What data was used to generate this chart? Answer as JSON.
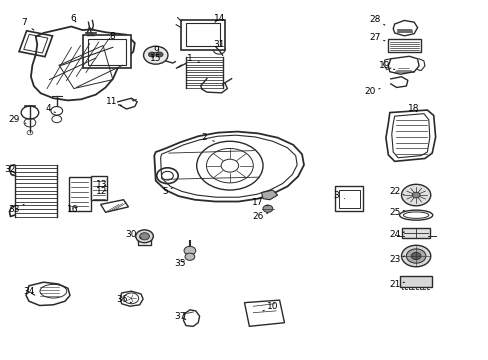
{
  "bg_color": "#ffffff",
  "line_color": "#2a2a2a",
  "parts_labels": [
    [
      7,
      0.048,
      0.938,
      0.068,
      0.918
    ],
    [
      6,
      0.148,
      0.95,
      0.158,
      0.935
    ],
    [
      8,
      0.228,
      0.9,
      0.218,
      0.888
    ],
    [
      9,
      0.318,
      0.862,
      0.31,
      0.848
    ],
    [
      15,
      0.318,
      0.838,
      0.31,
      0.845
    ],
    [
      14,
      0.448,
      0.95,
      0.435,
      0.935
    ],
    [
      31,
      0.448,
      0.878,
      0.458,
      0.868
    ],
    [
      1,
      0.388,
      0.838,
      0.408,
      0.828
    ],
    [
      28,
      0.768,
      0.948,
      0.788,
      0.932
    ],
    [
      27,
      0.768,
      0.898,
      0.788,
      0.888
    ],
    [
      19,
      0.788,
      0.818,
      0.808,
      0.808
    ],
    [
      20,
      0.758,
      0.748,
      0.778,
      0.755
    ],
    [
      18,
      0.848,
      0.698,
      0.858,
      0.685
    ],
    [
      11,
      0.228,
      0.718,
      0.248,
      0.708
    ],
    [
      4,
      0.098,
      0.698,
      0.112,
      0.688
    ],
    [
      29,
      0.028,
      0.668,
      0.052,
      0.658
    ],
    [
      2,
      0.418,
      0.618,
      0.438,
      0.608
    ],
    [
      32,
      0.018,
      0.528,
      0.035,
      0.515
    ],
    [
      33,
      0.028,
      0.418,
      0.048,
      0.432
    ],
    [
      16,
      0.148,
      0.418,
      0.162,
      0.428
    ],
    [
      13,
      0.208,
      0.488,
      0.222,
      0.478
    ],
    [
      12,
      0.208,
      0.468,
      0.222,
      0.472
    ],
    [
      5,
      0.338,
      0.468,
      0.352,
      0.478
    ],
    [
      17,
      0.528,
      0.438,
      0.548,
      0.428
    ],
    [
      26,
      0.528,
      0.398,
      0.548,
      0.408
    ],
    [
      3,
      0.688,
      0.458,
      0.705,
      0.448
    ],
    [
      22,
      0.808,
      0.468,
      0.828,
      0.458
    ],
    [
      25,
      0.808,
      0.408,
      0.828,
      0.415
    ],
    [
      24,
      0.808,
      0.348,
      0.828,
      0.355
    ],
    [
      23,
      0.808,
      0.278,
      0.828,
      0.288
    ],
    [
      21,
      0.808,
      0.208,
      0.828,
      0.215
    ],
    [
      30,
      0.268,
      0.348,
      0.288,
      0.338
    ],
    [
      35,
      0.368,
      0.268,
      0.382,
      0.278
    ],
    [
      34,
      0.058,
      0.188,
      0.075,
      0.175
    ],
    [
      36,
      0.248,
      0.168,
      0.268,
      0.158
    ],
    [
      37,
      0.368,
      0.118,
      0.385,
      0.108
    ],
    [
      10,
      0.558,
      0.148,
      0.538,
      0.135
    ]
  ]
}
